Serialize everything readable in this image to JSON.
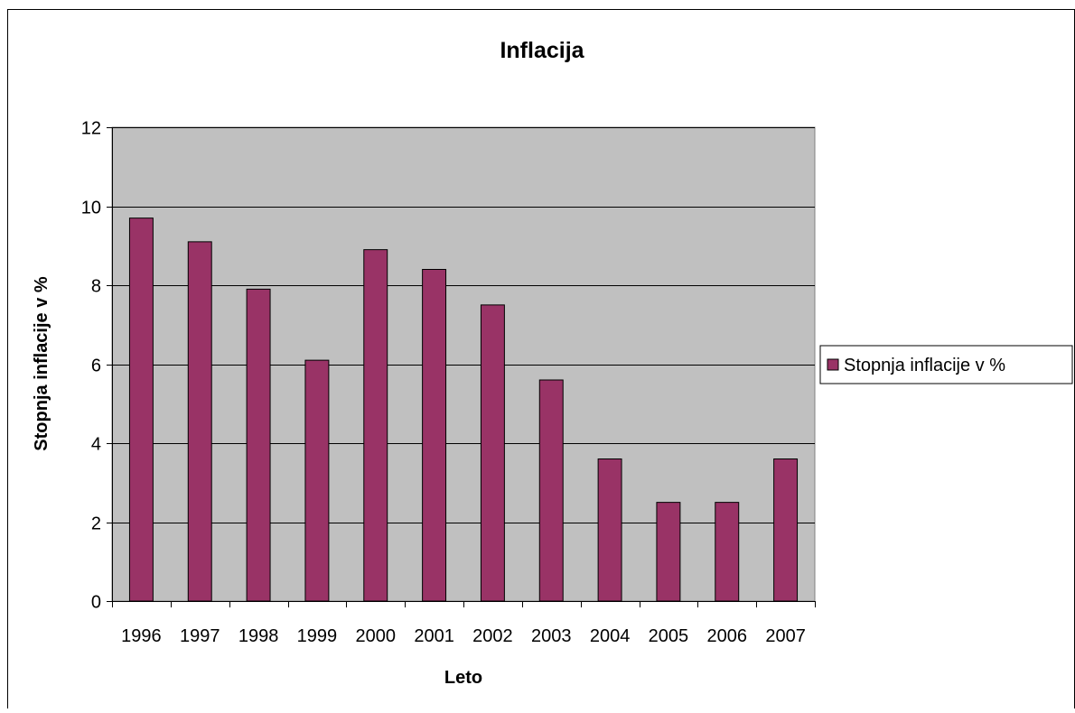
{
  "chart_data": {
    "type": "bar",
    "title": "Inflacija",
    "xlabel": "Leto",
    "ylabel": "Stopnja inflacije v %",
    "categories": [
      "1996",
      "1997",
      "1998",
      "1999",
      "2000",
      "2001",
      "2002",
      "2003",
      "2004",
      "2005",
      "2006",
      "2007"
    ],
    "series": [
      {
        "name": "Stopnja inflacije v %",
        "values": [
          9.7,
          9.1,
          7.9,
          6.1,
          8.9,
          8.4,
          7.5,
          5.6,
          3.6,
          2.5,
          2.5,
          3.6
        ],
        "color": "#993366"
      }
    ],
    "ylim": [
      0,
      12
    ],
    "yticks": [
      "0",
      "2",
      "4",
      "6",
      "8",
      "10",
      "12"
    ],
    "grid": true,
    "legend_position": "right",
    "plot_background": "#C0C0C0"
  }
}
